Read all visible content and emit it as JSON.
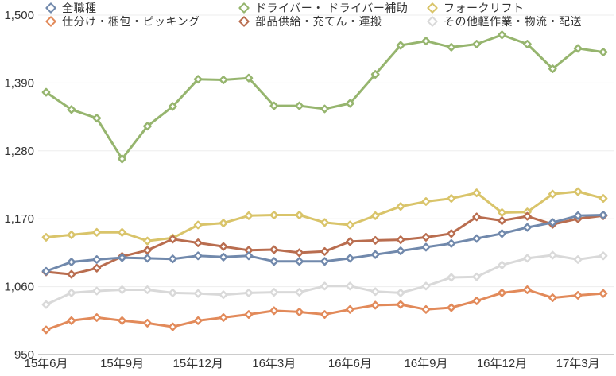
{
  "chart_data": {
    "type": "line",
    "title": "",
    "xlabel": "",
    "ylabel": "",
    "n_points": 23,
    "x_tick_labels": [
      "15年6月",
      "15年9月",
      "15年12月",
      "16年3月",
      "16年6月",
      "16年9月",
      "16年12月",
      "17年3月"
    ],
    "x_tick_indices": [
      0,
      3,
      6,
      9,
      12,
      15,
      18,
      21
    ],
    "ylim": [
      950,
      1500
    ],
    "y_ticks": [
      950,
      1060,
      1170,
      1280,
      1390,
      1500
    ],
    "y_tick_labels": [
      "950",
      "1,060",
      "1,170",
      "1,280",
      "1,390",
      "1,500"
    ],
    "grid": true,
    "legend_position": "top",
    "marker": "diamond-outline-white-fill",
    "axis_text_color": "#333333",
    "gridline_color": "#ededed",
    "axis_line_color": "#999999",
    "series": [
      {
        "name": "全職種",
        "color": "#7189ac",
        "values": [
          1085,
          1100,
          1104,
          1107,
          1106,
          1105,
          1110,
          1108,
          1110,
          1101,
          1101,
          1101,
          1106,
          1112,
          1118,
          1124,
          1130,
          1138,
          1146,
          1156,
          1164,
          1175,
          1176
        ]
      },
      {
        "name": "仕分け・梱包・ピッキング",
        "color": "#e28a5a",
        "values": [
          990,
          1005,
          1010,
          1005,
          1001,
          995,
          1005,
          1010,
          1015,
          1021,
          1019,
          1015,
          1023,
          1030,
          1031,
          1023,
          1026,
          1037,
          1050,
          1055,
          1042,
          1046,
          1049
        ]
      },
      {
        "name": "ドライバー・ ドライバー補助",
        "color": "#96b56e",
        "values": [
          1375,
          1347,
          1333,
          1267,
          1320,
          1352,
          1396,
          1395,
          1398,
          1353,
          1353,
          1348,
          1357,
          1404,
          1451,
          1458,
          1448,
          1453,
          1468,
          1453,
          1413,
          1446,
          1440
        ]
      },
      {
        "name": "部品供給・充てん・運搬",
        "color": "#b96d4f",
        "values": [
          1084,
          1080,
          1090,
          1109,
          1119,
          1137,
          1131,
          1125,
          1119,
          1120,
          1115,
          1117,
          1133,
          1135,
          1136,
          1140,
          1146,
          1173,
          1167,
          1174,
          1161,
          1170,
          1175
        ]
      },
      {
        "name": "フォークリフト",
        "color": "#d9c46a",
        "values": [
          1140,
          1144,
          1148,
          1148,
          1134,
          1139,
          1160,
          1163,
          1175,
          1176,
          1176,
          1164,
          1160,
          1175,
          1190,
          1198,
          1203,
          1212,
          1180,
          1181,
          1210,
          1214,
          1203
        ]
      },
      {
        "name": "その他軽作業・物流・配送",
        "color": "#d9d9d9",
        "values": [
          1031,
          1050,
          1053,
          1055,
          1055,
          1050,
          1049,
          1047,
          1050,
          1051,
          1051,
          1061,
          1061,
          1052,
          1050,
          1061,
          1075,
          1076,
          1095,
          1106,
          1111,
          1104,
          1110
        ]
      }
    ],
    "legend_columns": [
      [
        0,
        1
      ],
      [
        2,
        3
      ],
      [
        4,
        5
      ]
    ],
    "draw_order": [
      5,
      4,
      3,
      1,
      2,
      0
    ]
  }
}
